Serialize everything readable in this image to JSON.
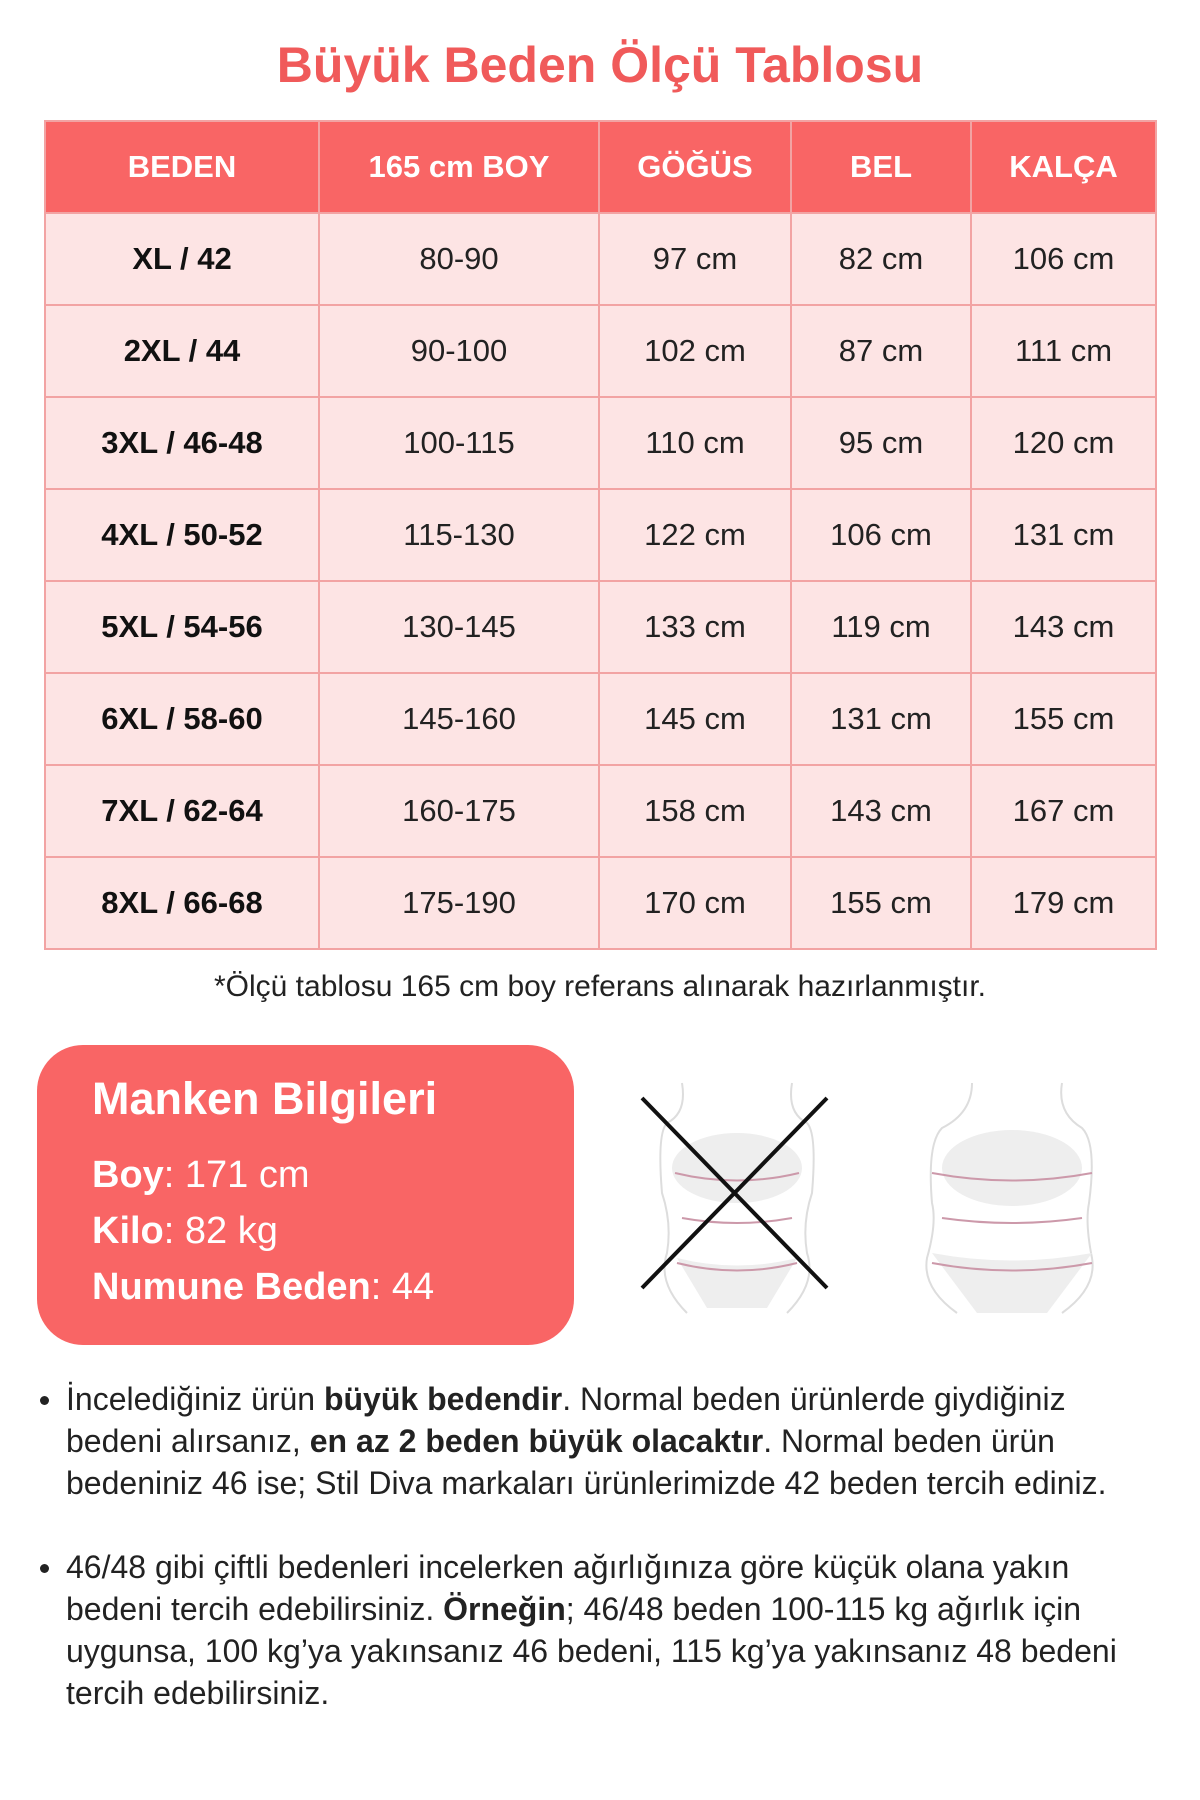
{
  "title": "Büyük Beden Ölçü Tablosu",
  "table": {
    "headers": [
      "BEDEN",
      "165 cm BOY",
      "GÖĞÜS",
      "BEL",
      "KALÇA"
    ],
    "rows": [
      [
        "XL / 42",
        "80-90",
        "97 cm",
        "82 cm",
        "106 cm"
      ],
      [
        "2XL / 44",
        "90-100",
        "102 cm",
        "87 cm",
        "111 cm"
      ],
      [
        "3XL / 46-48",
        "100-115",
        "110 cm",
        "95 cm",
        "120 cm"
      ],
      [
        "4XL / 50-52",
        "115-130",
        "122 cm",
        "106 cm",
        "131 cm"
      ],
      [
        "5XL / 54-56",
        "130-145",
        "133 cm",
        "119 cm",
        "143 cm"
      ],
      [
        "6XL / 58-60",
        "145-160",
        "145 cm",
        "131 cm",
        "155 cm"
      ],
      [
        "7XL / 62-64",
        "160-175",
        "158 cm",
        "143 cm",
        "167 cm"
      ],
      [
        "8XL / 66-68",
        "175-190",
        "170 cm",
        "155 cm",
        "179 cm"
      ]
    ]
  },
  "note": "*Ölçü tablosu 165 cm boy referans alınarak hazırlanmıştır.",
  "model": {
    "title": "Manken Bilgileri",
    "boy_label": "Boy",
    "boy": ": 171 cm",
    "kilo_label": "Kilo",
    "kilo": ": 82 kg",
    "beden_label": "Numune Beden",
    "beden": ": 44"
  },
  "bullets": [
    {
      "p1": "İncelediğiniz ürün ",
      "b1": "büyük bedendir",
      "p2": ". Normal beden ürünlerde giydiğiniz bedeni alırsanız, ",
      "b2": "en az 2 beden büyük olacaktır",
      "p3": ". Normal beden ürün bedeniniz 46 ise; Stil Diva markaları ürünlerimizde 42 beden tercih ediniz."
    },
    {
      "p1": "46/48 gibi çiftli bedenleri incelerken ağırlığınıza göre küçük olana yakın bedeni tercih edebilirsiniz. ",
      "b1": "Örneğin",
      "p2": "; 46/48 beden 100-115 kg ağırlık için uygunsa, 100 kg’ya yakınsanız 46 bedeni, 115 kg’ya yakınsanız 48 bedeni tercih edebilirsiniz.",
      "b2": "",
      "p3": ""
    }
  ],
  "colors": {
    "accent": "#f96565",
    "row_bg": "#fde4e4"
  }
}
